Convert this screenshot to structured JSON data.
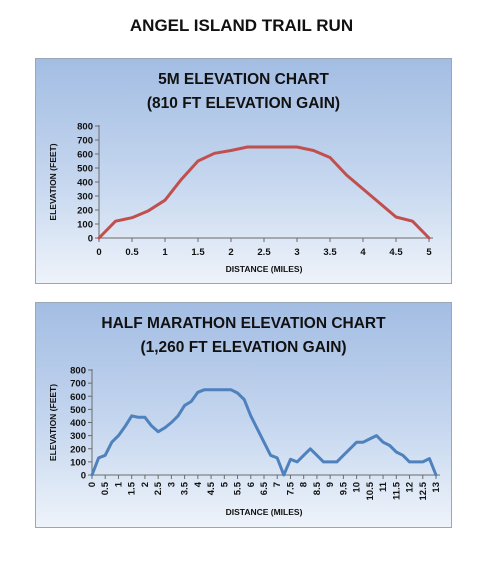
{
  "page": {
    "title": "ANGEL ISLAND TRAIL RUN"
  },
  "chart_data": [
    {
      "type": "line",
      "title": "5M ELEVATION CHART",
      "subtitle": "(810 FT ELEVATION GAIN)",
      "xlabel": "DISTANCE (MILES)",
      "ylabel": "ELEVATION (FEET)",
      "xlim": [
        0,
        5
      ],
      "ylim": [
        0,
        800
      ],
      "x_ticks": [
        "0",
        "0.5",
        "1",
        "1.5",
        "2",
        "2.5",
        "3",
        "3.5",
        "4",
        "4.5",
        "5"
      ],
      "y_ticks": [
        "0",
        "100",
        "200",
        "300",
        "400",
        "500",
        "600",
        "700",
        "800"
      ],
      "grid": false,
      "line_color": "#c0504d",
      "x": [
        0,
        0.25,
        0.5,
        0.75,
        1,
        1.25,
        1.5,
        1.75,
        2,
        2.25,
        2.5,
        2.75,
        3,
        3.25,
        3.5,
        3.75,
        4,
        4.25,
        4.5,
        4.75,
        5
      ],
      "values": [
        0,
        120,
        145,
        195,
        270,
        420,
        550,
        605,
        625,
        650,
        650,
        650,
        650,
        625,
        575,
        450,
        350,
        250,
        150,
        120,
        0
      ]
    },
    {
      "type": "line",
      "title": "HALF MARATHON ELEVATION CHART",
      "subtitle": "(1,260 FT ELEVATION GAIN)",
      "xlabel": "DISTANCE (MILES)",
      "ylabel": "ELEVATION (FEET)",
      "xlim": [
        0,
        13
      ],
      "ylim": [
        0,
        800
      ],
      "x_ticks": [
        "0",
        "0.5",
        "1",
        "1.5",
        "2",
        "2.5",
        "3",
        "3.5",
        "4",
        "4.5",
        "5",
        "5.5",
        "6",
        "6.5",
        "7",
        "7.5",
        "8",
        "8.5",
        "9",
        "9.5",
        "10",
        "10.5",
        "11",
        "11.5",
        "12",
        "12.5",
        "13"
      ],
      "y_ticks": [
        "0",
        "100",
        "200",
        "300",
        "400",
        "500",
        "600",
        "700",
        "800"
      ],
      "grid": false,
      "line_color": "#4f81bd",
      "x": [
        0,
        0.25,
        0.5,
        0.75,
        1,
        1.25,
        1.5,
        1.75,
        2,
        2.25,
        2.5,
        2.75,
        3,
        3.25,
        3.5,
        3.75,
        4,
        4.25,
        4.5,
        4.75,
        5,
        5.25,
        5.5,
        5.75,
        6,
        6.25,
        6.5,
        6.75,
        7,
        7.25,
        7.5,
        7.75,
        8,
        8.25,
        8.5,
        8.75,
        9,
        9.25,
        9.5,
        9.75,
        10,
        10.25,
        10.5,
        10.75,
        11,
        11.25,
        11.5,
        11.75,
        12,
        12.25,
        12.5,
        12.75,
        13
      ],
      "values": [
        0,
        130,
        150,
        250,
        300,
        370,
        450,
        440,
        440,
        375,
        330,
        360,
        400,
        450,
        530,
        560,
        630,
        650,
        650,
        650,
        650,
        650,
        625,
        575,
        450,
        350,
        250,
        150,
        130,
        0,
        120,
        100,
        150,
        200,
        150,
        100,
        100,
        100,
        150,
        200,
        250,
        250,
        275,
        300,
        250,
        225,
        175,
        150,
        100,
        100,
        100,
        125,
        0
      ]
    }
  ]
}
